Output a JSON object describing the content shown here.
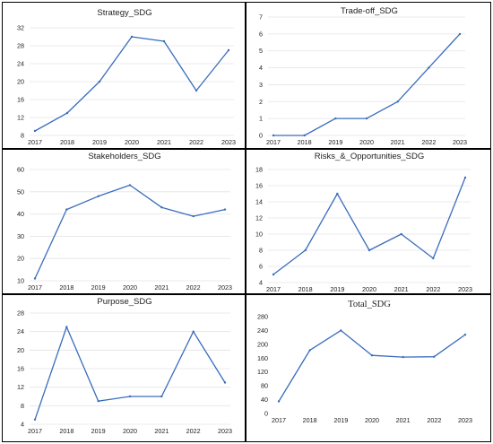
{
  "accent": "#3a6cbd",
  "chart_data": [
    {
      "type": "line",
      "title": "Strategy_SDG",
      "x": [
        "2017",
        "2018",
        "2019",
        "2020",
        "2021",
        "2022",
        "2023"
      ],
      "series": [
        {
          "values": [
            9,
            13,
            20,
            30,
            29,
            18,
            27
          ]
        }
      ],
      "yticks": [
        8,
        12,
        16,
        20,
        24,
        28,
        32
      ],
      "ylim": [
        8,
        32
      ],
      "grid": true
    },
    {
      "type": "line",
      "title": "Trade-off_SDG",
      "x": [
        "2017",
        "2018",
        "2019",
        "2020",
        "2021",
        "2022",
        "2023"
      ],
      "series": [
        {
          "values": [
            0,
            0,
            1,
            1,
            2,
            4,
            6
          ]
        }
      ],
      "yticks": [
        0,
        1,
        2,
        3,
        4,
        5,
        6,
        7
      ],
      "ylim": [
        0,
        7
      ],
      "grid": true
    },
    {
      "type": "line",
      "title": "Stakeholders_SDG",
      "x": [
        "2017",
        "2018",
        "2019",
        "2020",
        "2021",
        "2022",
        "2023"
      ],
      "series": [
        {
          "values": [
            11,
            42,
            48,
            53,
            43,
            39,
            42
          ]
        }
      ],
      "yticks": [
        10,
        20,
        30,
        40,
        50,
        60
      ],
      "ylim": [
        10,
        60
      ],
      "grid": true
    },
    {
      "type": "line",
      "title": "Risks_&_Opportunities_SDG",
      "x": [
        "2017",
        "2018",
        "2019",
        "2020",
        "2021",
        "2022",
        "2023"
      ],
      "series": [
        {
          "values": [
            5,
            8,
            15,
            8,
            10,
            7,
            17
          ]
        }
      ],
      "yticks": [
        4,
        6,
        8,
        10,
        12,
        14,
        16,
        18
      ],
      "ylim": [
        4,
        18
      ],
      "grid": true
    },
    {
      "type": "line",
      "title": "Purpose_SDG",
      "x": [
        "2017",
        "2018",
        "2019",
        "2020",
        "2021",
        "2022",
        "2023"
      ],
      "series": [
        {
          "values": [
            5,
            25,
            9,
            10,
            10,
            24,
            13
          ]
        }
      ],
      "yticks": [
        4,
        8,
        12,
        16,
        20,
        24,
        28
      ],
      "ylim": [
        4,
        28
      ],
      "grid": true
    },
    {
      "type": "line",
      "title": "Total_SDG",
      "x": [
        "2017",
        "2018",
        "2019",
        "2020",
        "2021",
        "2022",
        "2023"
      ],
      "series": [
        {
          "values": [
            35,
            183,
            240,
            168,
            163,
            164,
            228
          ]
        }
      ],
      "yticks": [
        0,
        40,
        80,
        120,
        160,
        200,
        240,
        280
      ],
      "ylim": [
        0,
        280
      ],
      "grid": false
    }
  ]
}
